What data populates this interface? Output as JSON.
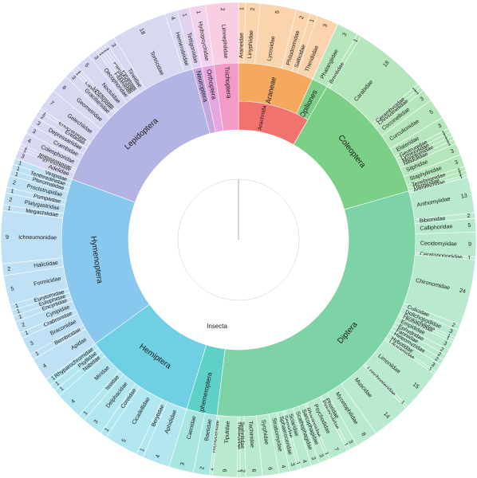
{
  "chart_data": {
    "type": "sunburst",
    "title": "",
    "root": {
      "name": "Insecta",
      "color": "#8fad46",
      "children": [
        {
          "name": "Arachnida",
          "color": "#f2736d",
          "children": [
            {
              "name": "Araneae",
              "color": "#f4a95e",
              "leafcolor": "#fbd3ad",
              "children": [
                {
                  "name": "Araneidae",
                  "value": 1
                },
                {
                  "name": "Linyphiidae",
                  "value": 2
                },
                {
                  "name": "Lycosidae",
                  "value": 5
                },
                {
                  "name": "Philodromidae",
                  "value": 2
                },
                {
                  "name": "Salticidae",
                  "value": 1
                },
                {
                  "name": "Theridiidae",
                  "value": 3
                }
              ]
            },
            {
              "name": "Opiliones",
              "color": "#7ccf86",
              "leafcolor": "#b6e7bc",
              "children": [
                {
                  "name": "Phalangiidae",
                  "value": 3
                }
              ]
            }
          ]
        },
        {
          "name": "Coleoptera",
          "color": "#7ccf86",
          "leafcolor": "#b6e7bc",
          "children": [
            {
              "name": "Brentidae",
              "value": 1
            },
            {
              "name": "Carabidae",
              "value": 18
            },
            {
              "name": "Cerambycidae",
              "value": 1
            },
            {
              "name": "Chrysomelidae",
              "value": 1
            },
            {
              "name": "Coccinellidae",
              "value": 3
            },
            {
              "name": "Curculionidae",
              "value": 5
            },
            {
              "name": "Elateridae",
              "value": 3
            },
            {
              "name": "Geotrupidae",
              "value": 1
            },
            {
              "name": "Lymexylidae",
              "value": 1
            },
            {
              "name": "Monotomidae",
              "value": 1
            },
            {
              "name": "Nitidulidae",
              "value": 1
            },
            {
              "name": "Silphidae",
              "value": 3
            },
            {
              "name": "Staphylinidae",
              "value": 3
            },
            {
              "name": "Tenebrionidae",
              "value": 1
            },
            {
              "name": "Throscidae",
              "value": 1
            }
          ]
        },
        {
          "name": "Diptera",
          "color": "#7dd3a6",
          "leafcolor": "#b9ead0",
          "children": [
            {
              "name": "Agromyzidae",
              "value": 1
            },
            {
              "name": "Anthomyiidae",
              "value": 13
            },
            {
              "name": "Bibionidae",
              "value": 2
            },
            {
              "name": "Calliphoridae",
              "value": 5
            },
            {
              "name": "Cecidomyiidae",
              "value": 9
            },
            {
              "name": "Ceratopogonidae",
              "value": 1
            },
            {
              "name": "Chironomidae",
              "value": 24
            },
            {
              "name": "Culicidae",
              "value": 2
            },
            {
              "name": "Dolichopodidae",
              "value": 3
            },
            {
              "name": "Drosophilidae",
              "value": 1
            },
            {
              "name": "Dryomyzidae",
              "value": 1
            },
            {
              "name": "Empididae",
              "value": 3
            },
            {
              "name": "Ephydridae",
              "value": 2
            },
            {
              "name": "Fanniidae",
              "value": 2
            },
            {
              "name": "Heleomyzidae",
              "value": 2
            },
            {
              "name": "Hybotidae",
              "value": 3
            },
            {
              "name": "Lauxaniidae",
              "value": 1
            },
            {
              "name": "Limoniidae",
              "value": 15
            },
            {
              "name": "Lonchopteridae",
              "value": 1
            },
            {
              "name": "Muscidae",
              "value": 14
            },
            {
              "name": "Mycetophilidae",
              "value": 8
            },
            {
              "name": "Phoridae",
              "value": 3
            },
            {
              "name": "Pipunculidae",
              "value": 1
            },
            {
              "name": "Psychodidae",
              "value": 7
            },
            {
              "name": "Rhagionidae",
              "value": 1
            },
            {
              "name": "Sarcophagidae",
              "value": 3
            },
            {
              "name": "Scathophagidae",
              "value": 3
            },
            {
              "name": "Sciaridae",
              "value": 4
            },
            {
              "name": "Sepsidae",
              "value": 1
            },
            {
              "name": "Sphaeroceridae",
              "value": 3
            },
            {
              "name": "Stratiomyidae",
              "value": 4
            },
            {
              "name": "Syrphidae",
              "value": 6
            },
            {
              "name": "Tachinidae",
              "value": 6
            },
            {
              "name": "Tephritidae",
              "value": 2
            },
            {
              "name": "Therevidae",
              "value": 1
            },
            {
              "name": "Tipulidae",
              "value": 9
            },
            {
              "name": "Trichoceridae",
              "value": 1
            }
          ]
        },
        {
          "name": "Ephemeroptera",
          "color": "#5fd0c8",
          "leafcolor": "#a9e6e1",
          "children": [
            {
              "name": "Baetidae",
              "value": 2
            },
            {
              "name": "Caenidae",
              "value": 3
            }
          ]
        },
        {
          "name": "Hemiptera",
          "color": "#6fcfe3",
          "leafcolor": "#b2e6f1",
          "children": [
            {
              "name": "Aphididae",
              "value": 4
            },
            {
              "name": "Berytidae",
              "value": 1
            },
            {
              "name": "Cicadellidae",
              "value": 5
            },
            {
              "name": "Coreidae",
              "value": 1
            },
            {
              "name": "Delphacidae",
              "value": 3
            },
            {
              "name": "Issidae",
              "value": 1
            },
            {
              "name": "Miridae",
              "value": 4
            },
            {
              "name": "Nabidae",
              "value": 1
            },
            {
              "name": "Psyllidae",
              "value": 1
            },
            {
              "name": "Rhyparochromidae",
              "value": 1
            }
          ]
        },
        {
          "name": "Hymenoptera",
          "color": "#88c8ee",
          "leafcolor": "#c0e0f6",
          "children": [
            {
              "name": "Apidae",
              "value": 4
            },
            {
              "name": "Bembicidae",
              "value": 1
            },
            {
              "name": "Braconidae",
              "value": 3
            },
            {
              "name": "Crabronidae",
              "value": 1
            },
            {
              "name": "Cynipidae",
              "value": 2
            },
            {
              "name": "Encyrtidae",
              "value": 1
            },
            {
              "name": "Eulophidae",
              "value": 1
            },
            {
              "name": "Eurytomidae",
              "value": 1
            },
            {
              "name": "Formicidae",
              "value": 5
            },
            {
              "name": "Halictidae",
              "value": 2
            },
            {
              "name": "Ichneumonidae",
              "value": 9
            },
            {
              "name": "Megachilidae",
              "value": 1
            },
            {
              "name": "Platygastridae",
              "value": 2
            },
            {
              "name": "Pompilidae",
              "value": 1
            },
            {
              "name": "Proctotrupidae",
              "value": 2
            },
            {
              "name": "Pteromalidae",
              "value": 1
            },
            {
              "name": "Tenthredinidae",
              "value": 1
            },
            {
              "name": "Vespidae",
              "value": 1
            }
          ]
        },
        {
          "name": "Lepidoptera",
          "color": "#b3b4e4",
          "leafcolor": "#d7d8f1",
          "children": [
            {
              "name": "Adelidae",
              "value": 3
            },
            {
              "name": "Argyresthiidae",
              "value": 1
            },
            {
              "name": "Blastobasidae",
              "value": 1
            },
            {
              "name": "Coleophoridae",
              "value": 4
            },
            {
              "name": "Crambidae",
              "value": 3
            },
            {
              "name": "Depressariidae",
              "value": 3
            },
            {
              "name": "Erebidae",
              "value": 2
            },
            {
              "name": "Eriocraniidae",
              "value": 1
            },
            {
              "name": "Gelechiidae",
              "value": 7
            },
            {
              "name": "Geometridae",
              "value": 6
            },
            {
              "name": "Gracillariidae",
              "value": 3
            },
            {
              "name": "Lasiocampidae",
              "value": 1
            },
            {
              "name": "Lyonetiidae",
              "value": 1
            },
            {
              "name": "Noctuidae",
              "value": 5
            },
            {
              "name": "Oecophoridae",
              "value": 3
            },
            {
              "name": "Plutellidae",
              "value": 1
            },
            {
              "name": "Psychidae",
              "value": 1
            },
            {
              "name": "Pterophoridae",
              "value": 1
            },
            {
              "name": "Pyralidae",
              "value": 1
            },
            {
              "name": "Tineidae",
              "value": 3
            },
            {
              "name": "Tortricidae",
              "value": 18
            },
            {
              "name": "Hemerobiidae",
              "value": 4
            }
          ]
        },
        {
          "name": "Neuroptera",
          "color": "#c5a6e0",
          "leafcolor": "#e2d2f1",
          "children": [
            {
              "name": "Tettigoniidae",
              "value": 1
            }
          ]
        },
        {
          "name": "Orthoptera",
          "color": "#e8a6de",
          "leafcolor": "#f3d2ee",
          "children": [
            {
              "name": "Hydropsychidae",
              "value": 1
            }
          ]
        },
        {
          "name": "Trichoptera",
          "color": "#f39bc6",
          "leafcolor": "#f9cde2",
          "children": [
            {
              "name": "Limnephilidae",
              "value": 2
            }
          ]
        }
      ]
    }
  }
}
